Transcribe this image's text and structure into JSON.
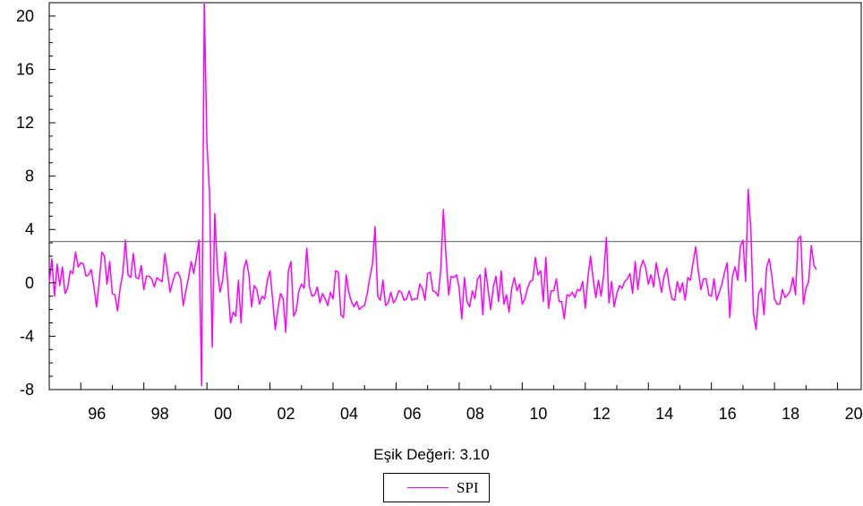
{
  "chart_data": {
    "type": "line",
    "caption": "Eşik Değeri: 3.10",
    "threshold": 3.1,
    "ylim": [
      -8,
      21
    ],
    "y_ticks": [
      -8,
      -4,
      0,
      4,
      8,
      12,
      16,
      20
    ],
    "x_start": 1995.0,
    "x_end": 2020.75,
    "x_ticks": [
      {
        "label": "96",
        "year": 1996
      },
      {
        "label": "98",
        "year": 1998
      },
      {
        "label": "00",
        "year": 2000
      },
      {
        "label": "02",
        "year": 2002
      },
      {
        "label": "04",
        "year": 2004
      },
      {
        "label": "06",
        "year": 2006
      },
      {
        "label": "08",
        "year": 2008
      },
      {
        "label": "10",
        "year": 2010
      },
      {
        "label": "12",
        "year": 2012
      },
      {
        "label": "14",
        "year": 2014
      },
      {
        "label": "16",
        "year": 2016
      },
      {
        "label": "18",
        "year": 2018
      },
      {
        "label": "20",
        "year": 2020
      }
    ],
    "series": [
      {
        "name": "SPI",
        "color": "#ff00ff",
        "points": [
          [
            1995.0,
            0.0
          ],
          [
            1995.083,
            1.8
          ],
          [
            1995.167,
            -1.0
          ],
          [
            1995.25,
            1.4
          ],
          [
            1995.333,
            -0.2
          ],
          [
            1995.417,
            1.2
          ],
          [
            1995.5,
            -0.8
          ],
          [
            1995.583,
            -0.4
          ],
          [
            1995.667,
            0.9
          ],
          [
            1995.75,
            0.7
          ],
          [
            1995.833,
            2.3
          ],
          [
            1995.917,
            1.2
          ],
          [
            1996.0,
            1.5
          ],
          [
            1996.083,
            1.4
          ],
          [
            1996.167,
            0.5
          ],
          [
            1996.25,
            0.6
          ],
          [
            1996.333,
            1.0
          ],
          [
            1996.417,
            -0.3
          ],
          [
            1996.5,
            -1.8
          ],
          [
            1996.583,
            0.0
          ],
          [
            1996.667,
            2.3
          ],
          [
            1996.75,
            2.0
          ],
          [
            1996.833,
            -0.1
          ],
          [
            1996.917,
            1.6
          ],
          [
            1997.0,
            -0.8
          ],
          [
            1997.083,
            -0.9
          ],
          [
            1997.167,
            -2.1
          ],
          [
            1997.25,
            -0.4
          ],
          [
            1997.333,
            0.7
          ],
          [
            1997.417,
            3.2
          ],
          [
            1997.5,
            0.6
          ],
          [
            1997.583,
            0.4
          ],
          [
            1997.667,
            2.2
          ],
          [
            1997.75,
            0.4
          ],
          [
            1997.833,
            0.3
          ],
          [
            1997.917,
            1.3
          ],
          [
            1998.0,
            -0.5
          ],
          [
            1998.083,
            0.5
          ],
          [
            1998.167,
            0.5
          ],
          [
            1998.25,
            0.3
          ],
          [
            1998.333,
            -0.3
          ],
          [
            1998.417,
            0.4
          ],
          [
            1998.5,
            0.2
          ],
          [
            1998.583,
            0.1
          ],
          [
            1998.667,
            2.2
          ],
          [
            1998.75,
            0.8
          ],
          [
            1998.833,
            -0.7
          ],
          [
            1998.917,
            0.1
          ],
          [
            1999.0,
            0.7
          ],
          [
            1999.083,
            0.8
          ],
          [
            1999.167,
            0.3
          ],
          [
            1999.25,
            -1.7
          ],
          [
            1999.333,
            -0.6
          ],
          [
            1999.417,
            0.4
          ],
          [
            1999.5,
            1.6
          ],
          [
            1999.583,
            0.7
          ],
          [
            1999.667,
            1.9
          ],
          [
            1999.75,
            3.2
          ],
          [
            1999.833,
            -7.7
          ],
          [
            1999.917,
            21.0
          ],
          [
            2000.0,
            10.5
          ],
          [
            2000.083,
            6.8
          ],
          [
            2000.167,
            -4.8
          ],
          [
            2000.25,
            5.2
          ],
          [
            2000.333,
            1.0
          ],
          [
            2000.417,
            -0.7
          ],
          [
            2000.5,
            0.2
          ],
          [
            2000.583,
            2.3
          ],
          [
            2000.667,
            -0.2
          ],
          [
            2000.75,
            -3.0
          ],
          [
            2000.833,
            -2.2
          ],
          [
            2000.917,
            -2.5
          ],
          [
            2001.0,
            0.2
          ],
          [
            2001.083,
            -3.0
          ],
          [
            2001.167,
            1.0
          ],
          [
            2001.25,
            1.7
          ],
          [
            2001.333,
            0.6
          ],
          [
            2001.417,
            -1.8
          ],
          [
            2001.5,
            -0.2
          ],
          [
            2001.583,
            -0.5
          ],
          [
            2001.667,
            -1.6
          ],
          [
            2001.75,
            -1.0
          ],
          [
            2001.833,
            -1.2
          ],
          [
            2001.917,
            0.2
          ],
          [
            2002.0,
            0.9
          ],
          [
            2002.083,
            -1.2
          ],
          [
            2002.167,
            -3.5
          ],
          [
            2002.25,
            -2.0
          ],
          [
            2002.333,
            -0.8
          ],
          [
            2002.417,
            -1.2
          ],
          [
            2002.5,
            -3.7
          ],
          [
            2002.583,
            0.9
          ],
          [
            2002.667,
            1.6
          ],
          [
            2002.75,
            -2.5
          ],
          [
            2002.833,
            -2.1
          ],
          [
            2002.917,
            -0.6
          ],
          [
            2003.0,
            -0.1
          ],
          [
            2003.083,
            -0.4
          ],
          [
            2003.167,
            2.6
          ],
          [
            2003.25,
            -0.3
          ],
          [
            2003.333,
            -1.0
          ],
          [
            2003.417,
            -0.9
          ],
          [
            2003.5,
            -0.3
          ],
          [
            2003.583,
            -1.5
          ],
          [
            2003.667,
            -0.8
          ],
          [
            2003.75,
            -1.2
          ],
          [
            2003.833,
            -1.7
          ],
          [
            2003.917,
            -0.7
          ],
          [
            2004.0,
            -1.2
          ],
          [
            2004.083,
            0.9
          ],
          [
            2004.167,
            0.8
          ],
          [
            2004.25,
            -2.4
          ],
          [
            2004.333,
            -2.6
          ],
          [
            2004.417,
            0.6
          ],
          [
            2004.5,
            -0.7
          ],
          [
            2004.583,
            -1.4
          ],
          [
            2004.667,
            -1.8
          ],
          [
            2004.75,
            -1.4
          ],
          [
            2004.833,
            -2.0
          ],
          [
            2004.917,
            -1.8
          ],
          [
            2005.0,
            -1.7
          ],
          [
            2005.083,
            -0.8
          ],
          [
            2005.167,
            0.4
          ],
          [
            2005.25,
            1.4
          ],
          [
            2005.333,
            4.2
          ],
          [
            2005.417,
            -1.0
          ],
          [
            2005.5,
            -1.3
          ],
          [
            2005.583,
            0.2
          ],
          [
            2005.667,
            -1.7
          ],
          [
            2005.75,
            -1.5
          ],
          [
            2005.833,
            -0.7
          ],
          [
            2005.917,
            -1.5
          ],
          [
            2006.0,
            -1.2
          ],
          [
            2006.083,
            -0.6
          ],
          [
            2006.167,
            -0.7
          ],
          [
            2006.25,
            -1.3
          ],
          [
            2006.333,
            -1.2
          ],
          [
            2006.417,
            -0.6
          ],
          [
            2006.5,
            -1.3
          ],
          [
            2006.583,
            -1.2
          ],
          [
            2006.667,
            -1.2
          ],
          [
            2006.75,
            -0.1
          ],
          [
            2006.833,
            -0.4
          ],
          [
            2006.917,
            -1.3
          ],
          [
            2007.0,
            0.7
          ],
          [
            2007.083,
            0.8
          ],
          [
            2007.167,
            -0.6
          ],
          [
            2007.25,
            -0.7
          ],
          [
            2007.333,
            -1.0
          ],
          [
            2007.417,
            1.0
          ],
          [
            2007.5,
            5.5
          ],
          [
            2007.583,
            2.0
          ],
          [
            2007.667,
            -0.9
          ],
          [
            2007.75,
            0.5
          ],
          [
            2007.833,
            0.4
          ],
          [
            2007.917,
            0.6
          ],
          [
            2008.0,
            -0.4
          ],
          [
            2008.083,
            -2.7
          ],
          [
            2008.167,
            0.4
          ],
          [
            2008.25,
            -1.4
          ],
          [
            2008.333,
            -1.8
          ],
          [
            2008.417,
            -0.6
          ],
          [
            2008.5,
            -1.2
          ],
          [
            2008.583,
            0.3
          ],
          [
            2008.667,
            0.6
          ],
          [
            2008.75,
            -2.4
          ],
          [
            2008.833,
            1.1
          ],
          [
            2008.917,
            -0.5
          ],
          [
            2009.0,
            -2.0
          ],
          [
            2009.083,
            -0.3
          ],
          [
            2009.167,
            0.5
          ],
          [
            2009.25,
            -1.4
          ],
          [
            2009.333,
            0.9
          ],
          [
            2009.417,
            -1.6
          ],
          [
            2009.5,
            -0.9
          ],
          [
            2009.583,
            -2.2
          ],
          [
            2009.667,
            -0.4
          ],
          [
            2009.75,
            0.4
          ],
          [
            2009.833,
            -0.6
          ],
          [
            2009.917,
            -0.1
          ],
          [
            2010.0,
            -1.6
          ],
          [
            2010.083,
            -1.2
          ],
          [
            2010.167,
            -0.4
          ],
          [
            2010.25,
            0.1
          ],
          [
            2010.333,
            0.2
          ],
          [
            2010.417,
            1.9
          ],
          [
            2010.5,
            0.6
          ],
          [
            2010.583,
            0.9
          ],
          [
            2010.667,
            -1.4
          ],
          [
            2010.75,
            1.9
          ],
          [
            2010.833,
            -1.9
          ],
          [
            2010.917,
            -0.6
          ],
          [
            2011.0,
            -0.6
          ],
          [
            2011.083,
            0.3
          ],
          [
            2011.167,
            -1.4
          ],
          [
            2011.25,
            -1.4
          ],
          [
            2011.333,
            -2.7
          ],
          [
            2011.417,
            -0.9
          ],
          [
            2011.5,
            -1.0
          ],
          [
            2011.583,
            -0.7
          ],
          [
            2011.667,
            -1.1
          ],
          [
            2011.75,
            -0.5
          ],
          [
            2011.833,
            -0.6
          ],
          [
            2011.917,
            0.1
          ],
          [
            2012.0,
            -1.9
          ],
          [
            2012.083,
            0.4
          ],
          [
            2012.167,
            2.0
          ],
          [
            2012.25,
            0.3
          ],
          [
            2012.333,
            -1.1
          ],
          [
            2012.417,
            0.2
          ],
          [
            2012.5,
            -1.0
          ],
          [
            2012.583,
            0.6
          ],
          [
            2012.667,
            3.4
          ],
          [
            2012.75,
            -1.5
          ],
          [
            2012.833,
            0.1
          ],
          [
            2012.917,
            -1.8
          ],
          [
            2013.0,
            -0.8
          ],
          [
            2013.083,
            -0.2
          ],
          [
            2013.167,
            -0.4
          ],
          [
            2013.25,
            0.1
          ],
          [
            2013.333,
            0.3
          ],
          [
            2013.417,
            0.7
          ],
          [
            2013.5,
            -0.8
          ],
          [
            2013.583,
            1.6
          ],
          [
            2013.667,
            -0.5
          ],
          [
            2013.75,
            1.1
          ],
          [
            2013.833,
            1.7
          ],
          [
            2013.917,
            1.1
          ],
          [
            2014.0,
            -0.1
          ],
          [
            2014.083,
            0.6
          ],
          [
            2014.167,
            -0.3
          ],
          [
            2014.25,
            1.5
          ],
          [
            2014.333,
            0.4
          ],
          [
            2014.417,
            -0.7
          ],
          [
            2014.5,
            0.5
          ],
          [
            2014.583,
            1.1
          ],
          [
            2014.667,
            -0.3
          ],
          [
            2014.75,
            -1.2
          ],
          [
            2014.833,
            -1.3
          ],
          [
            2014.917,
            0.1
          ],
          [
            2015.0,
            -0.7
          ],
          [
            2015.083,
            0.0
          ],
          [
            2015.167,
            -1.3
          ],
          [
            2015.25,
            0.4
          ],
          [
            2015.333,
            0.2
          ],
          [
            2015.417,
            1.5
          ],
          [
            2015.5,
            2.7
          ],
          [
            2015.583,
            0.9
          ],
          [
            2015.667,
            -0.5
          ],
          [
            2015.75,
            0.3
          ],
          [
            2015.833,
            0.3
          ],
          [
            2015.917,
            -0.9
          ],
          [
            2016.0,
            -1.0
          ],
          [
            2016.083,
            0.3
          ],
          [
            2016.167,
            -1.3
          ],
          [
            2016.25,
            -0.7
          ],
          [
            2016.333,
            -0.1
          ],
          [
            2016.417,
            0.8
          ],
          [
            2016.5,
            1.5
          ],
          [
            2016.583,
            -2.6
          ],
          [
            2016.667,
            0.5
          ],
          [
            2016.75,
            1.2
          ],
          [
            2016.833,
            0.2
          ],
          [
            2016.917,
            2.7
          ],
          [
            2017.0,
            3.2
          ],
          [
            2017.083,
            0.1
          ],
          [
            2017.167,
            7.0
          ],
          [
            2017.25,
            4.0
          ],
          [
            2017.333,
            -2.3
          ],
          [
            2017.417,
            -3.5
          ],
          [
            2017.5,
            -0.8
          ],
          [
            2017.583,
            -0.4
          ],
          [
            2017.667,
            -2.4
          ],
          [
            2017.75,
            1.2
          ],
          [
            2017.833,
            1.8
          ],
          [
            2017.917,
            0.5
          ],
          [
            2018.0,
            -1.2
          ],
          [
            2018.083,
            -1.6
          ],
          [
            2018.167,
            -1.6
          ],
          [
            2018.25,
            -0.5
          ],
          [
            2018.333,
            -1.1
          ],
          [
            2018.417,
            -0.9
          ],
          [
            2018.5,
            -0.6
          ],
          [
            2018.583,
            0.4
          ],
          [
            2018.667,
            -0.9
          ],
          [
            2018.75,
            3.3
          ],
          [
            2018.833,
            3.5
          ],
          [
            2018.917,
            -1.6
          ],
          [
            2019.0,
            -0.4
          ],
          [
            2019.083,
            0.1
          ],
          [
            2019.167,
            2.8
          ],
          [
            2019.25,
            1.3
          ],
          [
            2019.333,
            1.0
          ]
        ]
      }
    ],
    "legend": [
      {
        "label": "SPI",
        "color": "#ff00ff"
      }
    ],
    "threshold_color": "#777777"
  }
}
